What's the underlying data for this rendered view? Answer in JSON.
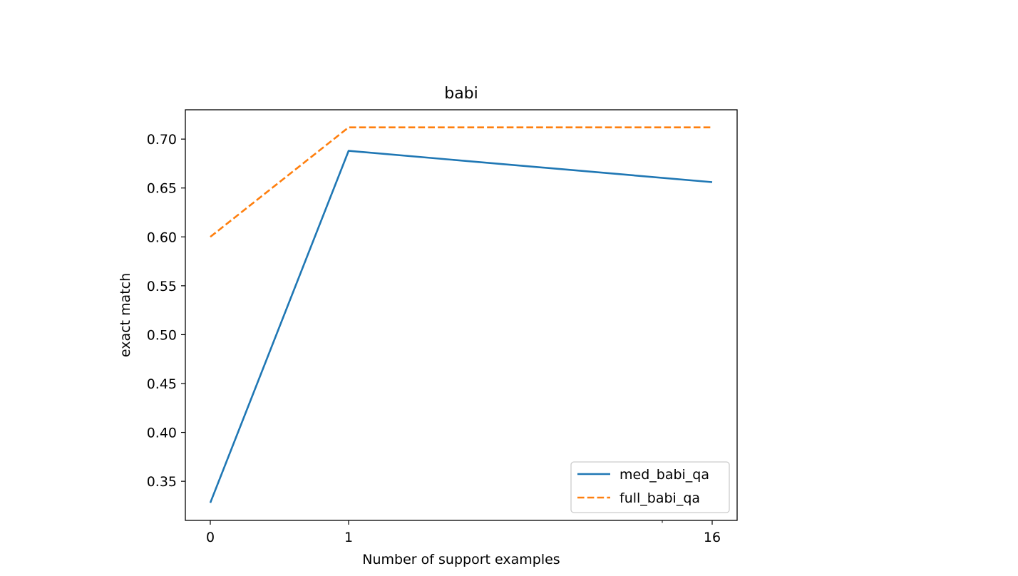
{
  "chart_data": {
    "type": "line",
    "title": "babi",
    "xlabel": "Number of support examples",
    "ylabel": "exact match",
    "x_tick_labels": [
      "0",
      "1",
      "16"
    ],
    "x": [
      0,
      1,
      16
    ],
    "y_ticks": [
      "0.35",
      "0.40",
      "0.45",
      "0.50",
      "0.55",
      "0.60",
      "0.65",
      "0.70"
    ],
    "ylim": [
      0.31,
      0.73
    ],
    "grid": false,
    "legend_position": "lower right",
    "series": [
      {
        "name": "med_babi_qa",
        "values": [
          0.328,
          0.688,
          0.656
        ],
        "color": "#1f77b4",
        "style": "solid"
      },
      {
        "name": "full_babi_qa",
        "values": [
          0.6,
          0.712,
          0.712
        ],
        "color": "#ff7f0e",
        "style": "dashed"
      }
    ]
  }
}
